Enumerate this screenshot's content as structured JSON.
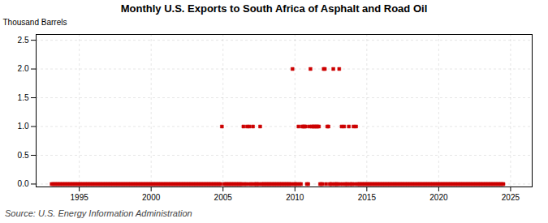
{
  "chart_data": {
    "type": "scatter",
    "title": "Monthly U.S. Exports to South Africa of Asphalt and Road Oil",
    "ylabel": "Thousand Barrels",
    "caption": "Source: U.S. Energy Information Administration",
    "color": "#cc0000",
    "marker": "square",
    "grid": true,
    "xlim": [
      1992.0,
      2026.5
    ],
    "xticks": [
      1995,
      2000,
      2005,
      2010,
      2015,
      2020,
      2025
    ],
    "ylim": [
      -0.05,
      2.6
    ],
    "yticks": [
      {
        "value": 0.0,
        "label": "0.0"
      },
      0.5,
      {
        "value": 1.0,
        "label": "1.0"
      },
      1.5,
      {
        "value": 2.0,
        "label": "2.0"
      },
      2.5
    ],
    "x": [
      1993.08,
      1993.17,
      1993.25,
      1993.33,
      1993.42,
      1993.5,
      1993.58,
      1993.67,
      1993.75,
      1993.83,
      1993.92,
      1994.0,
      1994.08,
      1994.17,
      1994.25,
      1994.33,
      1994.42,
      1994.5,
      1994.58,
      1994.67,
      1994.75,
      1994.83,
      1994.92,
      1995.0,
      1995.08,
      1995.17,
      1995.25,
      1995.33,
      1995.42,
      1995.5,
      1995.58,
      1995.67,
      1995.75,
      1995.83,
      1995.92,
      1996.0,
      1996.08,
      1996.17,
      1996.25,
      1996.33,
      1996.42,
      1996.5,
      1996.58,
      1996.67,
      1996.75,
      1996.83,
      1996.92,
      1997.0,
      1997.08,
      1997.17,
      1997.25,
      1997.33,
      1997.42,
      1997.5,
      1997.58,
      1997.67,
      1997.75,
      1997.83,
      1997.92,
      1998.0,
      1998.08,
      1998.17,
      1998.25,
      1998.33,
      1998.42,
      1998.5,
      1998.58,
      1998.67,
      1998.75,
      1998.83,
      1998.92,
      1999.0,
      1999.08,
      1999.17,
      1999.25,
      1999.33,
      1999.42,
      1999.5,
      1999.58,
      1999.67,
      1999.75,
      1999.83,
      1999.92,
      2000.0,
      2000.08,
      2000.17,
      2000.25,
      2000.33,
      2000.42,
      2000.5,
      2000.58,
      2000.67,
      2000.75,
      2000.83,
      2000.92,
      2001.0,
      2001.08,
      2001.17,
      2001.25,
      2001.33,
      2001.42,
      2001.5,
      2001.58,
      2001.67,
      2001.75,
      2001.83,
      2001.92,
      2002.0,
      2002.08,
      2002.17,
      2002.25,
      2002.33,
      2002.42,
      2002.5,
      2002.58,
      2002.67,
      2002.75,
      2002.83,
      2002.92,
      2003.0,
      2003.08,
      2003.17,
      2003.25,
      2003.33,
      2003.42,
      2003.5,
      2003.58,
      2003.67,
      2003.75,
      2003.83,
      2003.92,
      2004.0,
      2004.08,
      2004.17,
      2004.25,
      2004.33,
      2004.42,
      2004.5,
      2004.58,
      2004.67,
      2004.75,
      2004.83,
      2004.92,
      2005.08,
      2005.17,
      2005.25,
      2005.33,
      2005.42,
      2005.5,
      2005.58,
      2005.67,
      2005.75,
      2005.83,
      2005.92,
      2006.0,
      2006.08,
      2006.17,
      2006.25,
      2006.33,
      2006.42,
      2006.5,
      2006.58,
      2006.67,
      2006.75,
      2006.83,
      2006.92,
      2007.0,
      2007.08,
      2007.17,
      2007.25,
      2007.33,
      2007.42,
      2007.5,
      2007.58,
      2007.67,
      2007.75,
      2007.83,
      2007.92,
      2008.0,
      2008.08,
      2008.17,
      2008.25,
      2008.33,
      2008.42,
      2008.5,
      2008.58,
      2008.67,
      2008.75,
      2008.83,
      2008.92,
      2009.0,
      2009.08,
      2009.17,
      2009.25,
      2009.33,
      2009.42,
      2009.5,
      2009.58,
      2009.67,
      2009.75,
      2009.83,
      2009.92,
      2010.0,
      2010.08,
      2010.17,
      2010.25,
      2010.33,
      2010.42,
      2010.5,
      2010.58,
      2010.67,
      2010.75,
      2010.83,
      2010.92,
      2011.0,
      2011.08,
      2011.17,
      2011.25,
      2011.33,
      2011.42,
      2011.5,
      2011.58,
      2011.67,
      2011.75,
      2011.83,
      2011.92,
      2012.0,
      2012.08,
      2012.17,
      2012.25,
      2012.33,
      2012.42,
      2012.5,
      2012.58,
      2012.67,
      2012.75,
      2012.83,
      2012.92,
      2013.0,
      2013.08,
      2013.17,
      2013.25,
      2013.33,
      2013.42,
      2013.5,
      2013.58,
      2013.67,
      2013.75,
      2013.83,
      2013.92,
      2014.0,
      2014.08,
      2014.17,
      2014.25,
      2014.33,
      2014.42,
      2014.5,
      2014.58,
      2014.67,
      2014.75,
      2014.83,
      2014.92,
      2015.0,
      2015.08,
      2015.17,
      2015.25,
      2015.33,
      2015.42,
      2015.5,
      2015.58,
      2015.67,
      2015.75,
      2015.83,
      2015.92,
      2016.0,
      2016.08,
      2016.17,
      2016.25,
      2016.33,
      2016.42,
      2016.5,
      2016.58,
      2016.67,
      2016.75,
      2016.83,
      2016.92,
      2017.0,
      2017.08,
      2017.17,
      2017.25,
      2017.33,
      2017.42,
      2017.5,
      2017.58,
      2017.67,
      2017.75,
      2017.83,
      2017.92,
      2018.0,
      2018.08,
      2018.17,
      2018.25,
      2018.33,
      2018.42,
      2018.5,
      2018.58,
      2018.67,
      2018.75,
      2018.83,
      2018.92,
      2019.0,
      2019.08,
      2019.17,
      2019.25,
      2019.33,
      2019.42,
      2019.5,
      2019.58,
      2019.67,
      2019.75,
      2019.83,
      2019.92,
      2020.0,
      2020.08,
      2020.17,
      2020.25,
      2020.33,
      2020.42,
      2020.5,
      2020.58,
      2020.67,
      2020.75,
      2020.83,
      2020.92,
      2021.0,
      2021.08,
      2021.17,
      2021.25,
      2021.33,
      2021.42,
      2021.5,
      2021.58,
      2021.67,
      2021.75,
      2021.83,
      2021.92,
      2022.0,
      2022.08,
      2022.17,
      2022.25,
      2022.33,
      2022.42,
      2022.5,
      2022.58,
      2022.67,
      2022.75,
      2022.83,
      2022.92,
      2023.0,
      2023.08,
      2023.17,
      2023.25,
      2023.33,
      2023.42,
      2023.5,
      2023.58,
      2023.67,
      2023.75,
      2023.83,
      2023.92,
      2024.0,
      2024.08,
      2024.17,
      2024.25,
      2024.33,
      2024.42,
      2024.5
    ],
    "values": [
      0,
      0,
      0,
      0,
      0,
      0,
      0,
      0,
      0,
      0,
      0,
      0,
      0,
      0,
      0,
      0,
      0,
      0,
      0,
      0,
      0,
      0,
      0,
      0,
      0,
      0,
      0,
      0,
      0,
      0,
      0,
      0,
      0,
      0,
      0,
      0,
      0,
      0,
      0,
      0,
      0,
      0,
      0,
      0,
      0,
      0,
      0,
      0,
      0,
      0,
      0,
      0,
      0,
      0,
      0,
      0,
      0,
      0,
      0,
      0,
      0,
      0,
      0,
      0,
      0,
      0,
      0,
      0,
      0,
      0,
      0,
      0,
      0,
      0,
      0,
      0,
      0,
      0,
      0,
      0,
      0,
      0,
      0,
      0,
      0,
      0,
      0,
      0,
      0,
      0,
      0,
      0,
      0,
      0,
      0,
      0,
      0,
      0,
      0,
      0,
      0,
      0,
      0,
      0,
      0,
      0,
      0,
      0,
      0,
      0,
      0,
      0,
      0,
      0,
      0,
      0,
      0,
      0,
      0,
      0,
      0,
      0,
      0,
      0,
      0,
      0,
      0,
      0,
      0,
      0,
      0,
      0,
      0,
      0,
      0,
      0,
      0,
      0,
      0,
      0,
      0,
      0,
      1,
      0,
      0,
      0,
      0,
      0,
      0,
      0,
      0,
      0,
      0,
      0,
      0,
      0,
      0,
      0,
      0,
      1,
      0,
      0,
      1,
      0,
      1,
      0,
      0,
      1,
      0,
      0,
      0,
      0,
      0,
      1,
      0,
      0,
      0,
      0,
      0,
      0,
      0,
      0,
      0,
      0,
      0,
      0,
      0,
      0,
      0,
      0,
      0,
      0,
      0,
      0,
      0,
      0,
      0,
      0,
      0,
      0,
      2,
      0,
      0,
      0,
      0,
      1,
      0,
      0,
      1,
      1,
      1,
      1,
      0,
      0,
      1,
      2,
      1,
      1,
      1,
      1,
      1,
      1,
      1,
      0,
      0,
      0,
      2,
      2,
      0,
      1,
      1,
      0,
      0,
      0,
      2,
      0,
      0,
      0,
      0,
      2,
      0,
      1,
      0,
      1,
      0,
      0,
      0,
      1,
      0,
      0,
      0,
      1,
      0,
      1,
      0,
      0,
      0,
      0,
      0,
      0,
      0,
      0,
      0,
      0,
      0,
      0,
      0,
      0,
      0,
      0,
      0,
      0,
      0,
      0,
      0,
      0,
      0,
      0,
      0,
      0,
      0,
      0,
      0,
      0,
      0,
      0,
      0,
      0,
      0,
      0,
      0,
      0,
      0,
      0,
      0,
      0,
      0,
      0,
      0,
      0,
      0,
      0,
      0,
      0,
      0,
      0,
      0,
      0,
      0,
      0,
      0,
      0,
      0,
      0,
      0,
      0,
      0,
      0,
      0,
      0,
      0,
      0,
      0,
      0,
      0,
      0,
      0,
      0,
      0,
      0,
      0,
      0,
      0,
      0,
      0,
      0,
      0,
      0,
      0,
      0,
      0,
      0,
      0,
      0,
      0,
      0,
      0,
      0,
      0,
      0,
      0,
      0,
      0,
      0,
      0,
      0,
      0,
      0,
      0,
      0,
      0,
      0,
      0,
      0,
      0,
      0,
      0,
      0,
      0,
      0,
      0,
      0,
      0,
      0,
      0,
      0,
      0
    ]
  }
}
